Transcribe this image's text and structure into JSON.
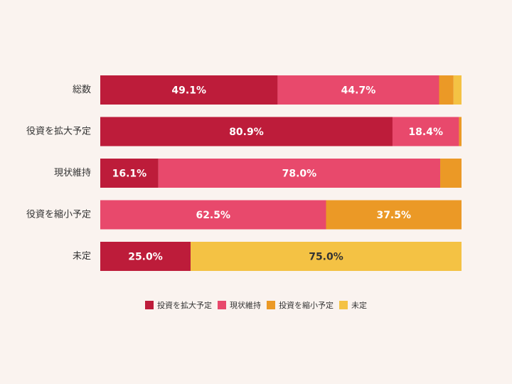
{
  "chart_data": {
    "type": "bar",
    "orientation": "horizontal",
    "stacked": true,
    "categories": [
      "総数",
      "役資を拡大予定",
      "現状維持",
      "役資を縮小予定",
      "未定"
    ],
    "xlim": [
      0,
      100
    ],
    "series": [
      {
        "name": "投資を拡大予定",
        "color": "#bd1c3a",
        "values": [
          49.1,
          80.9,
          16.1,
          0,
          25.0
        ],
        "value_labels": [
          "49.1%",
          "80.9%",
          "16.1%",
          null,
          "25.0%"
        ]
      },
      {
        "name": "現状維持",
        "color": "#e8496c",
        "values": [
          44.7,
          18.4,
          78.0,
          62.5,
          0
        ],
        "value_labels": [
          "44.7%",
          "18.4%",
          "78.0%",
          "62.5%",
          null
        ]
      },
      {
        "name": "投資を縮小予定",
        "color": "#eb9926",
        "values": [
          4.0,
          0.7,
          5.9,
          37.5,
          0
        ],
        "value_labels": [
          null,
          null,
          null,
          "37.5%",
          null
        ]
      },
      {
        "name": "未定",
        "color": "#f4c244",
        "values": [
          2.2,
          0,
          0,
          0,
          75.0
        ],
        "value_labels": [
          null,
          null,
          null,
          null,
          "75.0%"
        ]
      }
    ],
    "legend": "bottom"
  }
}
